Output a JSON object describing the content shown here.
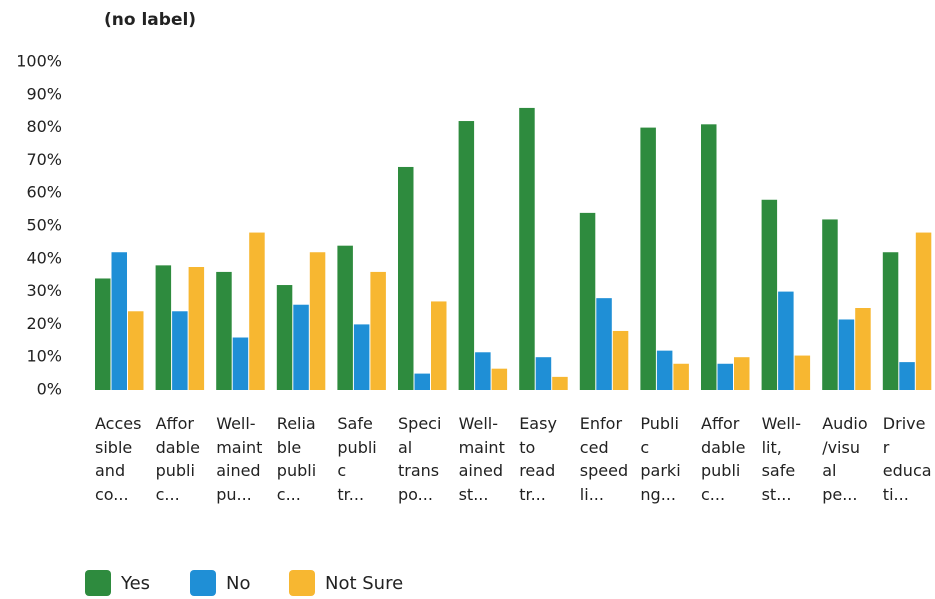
{
  "chart_data": {
    "type": "bar",
    "title": "(no label)",
    "categories": [
      "Acces\nsible\nand\nco...",
      "Affor\ndable\npubli\nc...",
      "Well-\nmaint\nained\npu...",
      "Relia\nble\npubli\nc...",
      "Safe\npubli\nc\ntr...",
      "Speci\nal\ntrans\npo...",
      "Well-\nmaint\nained\nst...",
      "Easy\nto\nread\ntr...",
      "Enfor\nced\nspeed\nli...",
      "Publi\nc\nparki\nng...",
      "Affor\ndable\npubli\nc...",
      "Well-\nlit,\nsafe\nst...",
      "Audio\n/visu\nal\npe...",
      "Drive\nr\neduca\nti..."
    ],
    "series": [
      {
        "name": "Yes",
        "color": "#2e8b3e",
        "values": [
          34,
          38,
          36,
          32,
          44,
          68,
          82,
          86,
          54,
          80,
          81,
          58,
          52,
          42
        ]
      },
      {
        "name": "No",
        "color": "#1f8fd6",
        "values": [
          42,
          24,
          16,
          26,
          20,
          5,
          11.5,
          10,
          28,
          12,
          8,
          30,
          21.5,
          8.5
        ]
      },
      {
        "name": "Not Sure",
        "color": "#f7b731",
        "values": [
          24,
          37.5,
          48,
          42,
          36,
          27,
          6.5,
          4,
          18,
          8,
          10,
          10.5,
          25,
          48
        ]
      }
    ],
    "ylim": [
      0,
      100
    ],
    "yticks": [
      {
        "value": 0,
        "label": "0%"
      },
      {
        "value": 10,
        "label": "10%"
      },
      {
        "value": 20,
        "label": "20%"
      },
      {
        "value": 30,
        "label": "30%"
      },
      {
        "value": 40,
        "label": "40%"
      },
      {
        "value": 50,
        "label": "50%"
      },
      {
        "value": 60,
        "label": "60%"
      },
      {
        "value": 70,
        "label": "70%"
      },
      {
        "value": 80,
        "label": "80%"
      },
      {
        "value": 90,
        "label": "90%"
      },
      {
        "value": 100,
        "label": "100%"
      }
    ],
    "grid": false,
    "legend": "bottom-left"
  }
}
